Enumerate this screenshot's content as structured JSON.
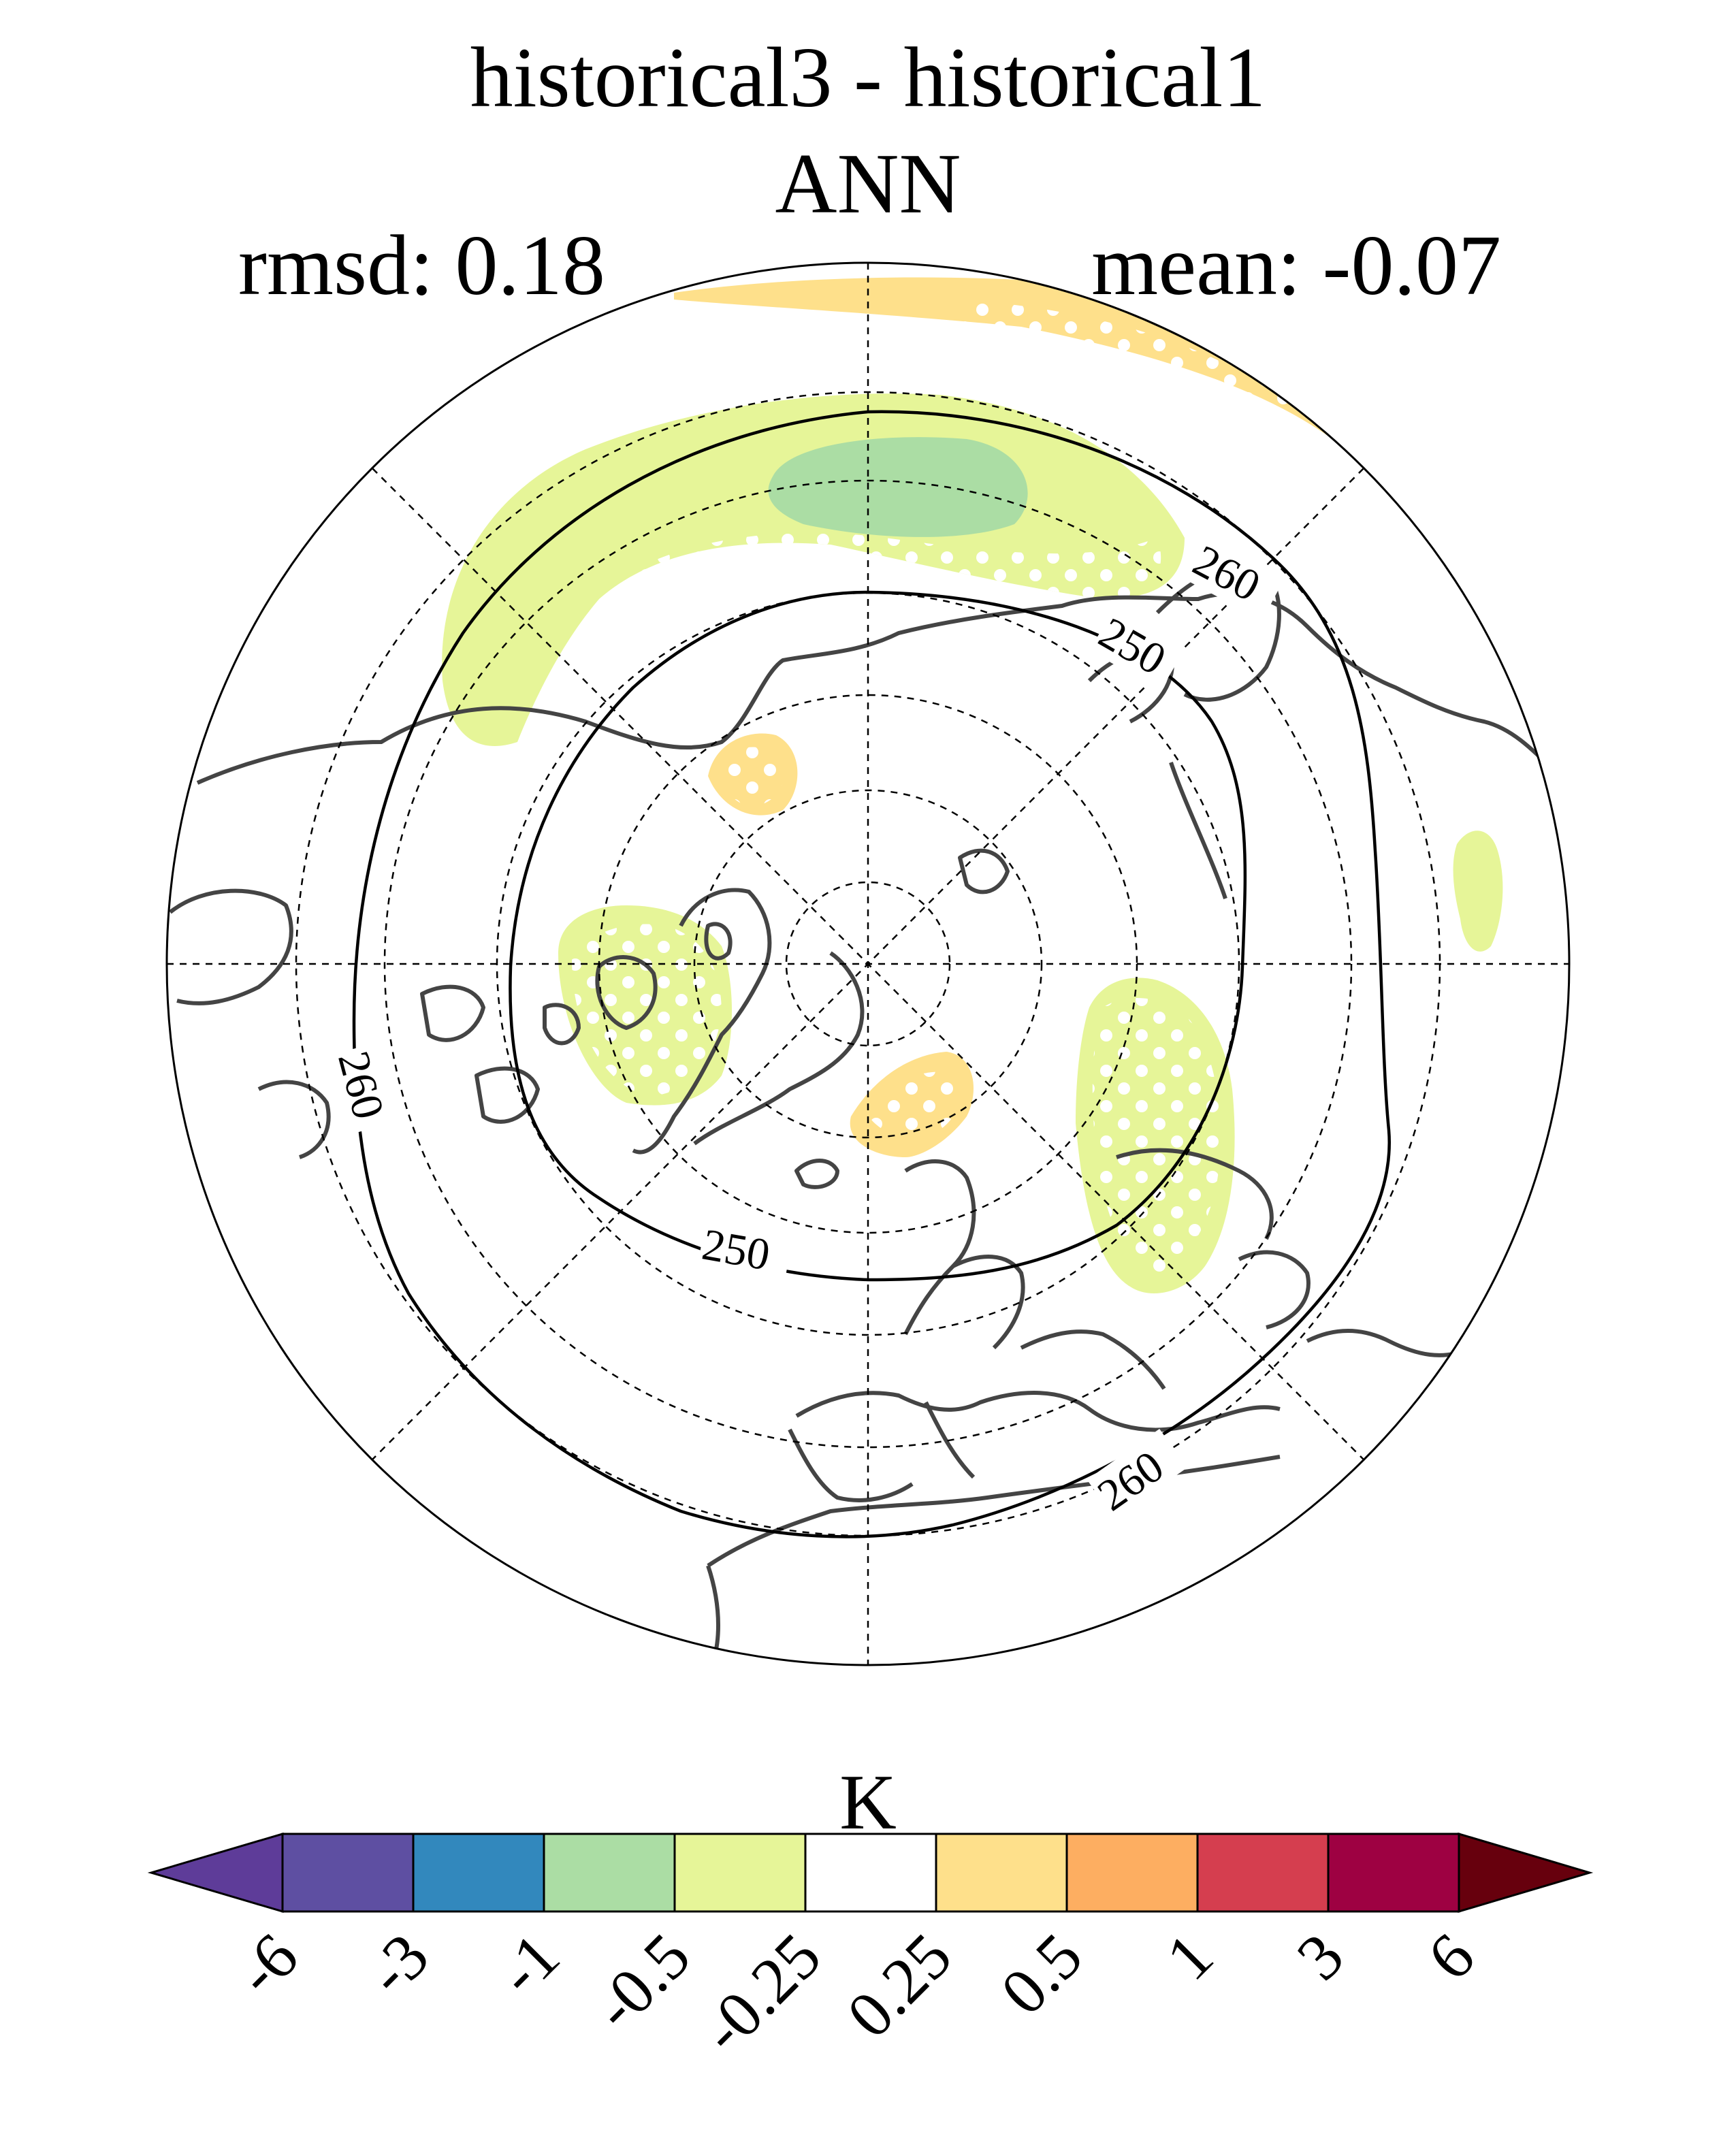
{
  "figure": {
    "title": "historical3 - historical1",
    "subtitle": "ANN",
    "rmsd_label": "rmsd: 0.18",
    "mean_label": "mean: -0.07"
  },
  "map": {
    "projection": "north-polar-stereographic",
    "contour_labels": [
      "260",
      "250",
      "260",
      "250",
      "260"
    ]
  },
  "colorbar": {
    "unit": "K",
    "ticks": [
      "-6",
      "-3",
      "-1",
      "-0.5",
      "-0.25",
      "0.25",
      "0.5",
      "1",
      "3",
      "6"
    ],
    "colors": [
      "#5e3c99",
      "#5e4fa2",
      "#3288bd",
      "#abdda4",
      "#e6f598",
      "#ffffff",
      "#fee08b",
      "#fdae61",
      "#d53e4f",
      "#9e0142",
      "#67000d"
    ]
  }
}
